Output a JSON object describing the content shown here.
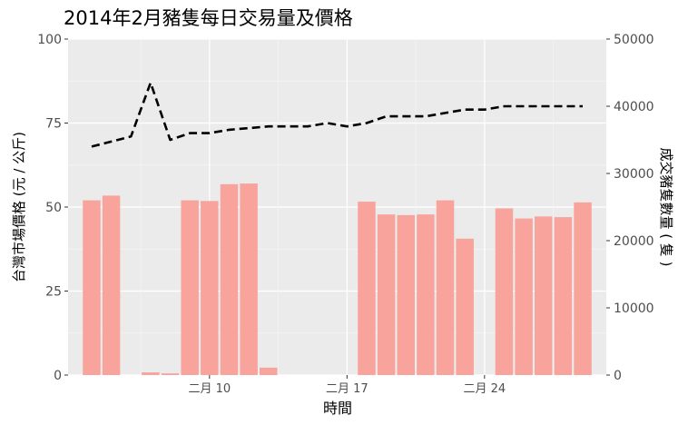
{
  "chart_data": {
    "type": "bar",
    "title": "2014年2月豬隻每日交易量及價格",
    "xlabel": "時間",
    "ylabel": "台灣市場價格 (元 / 公斤)",
    "y2label": "成交豬隻數量 ( 隻 )",
    "x_ticks": [
      {
        "day": 10,
        "label": "二月 10"
      },
      {
        "day": 17,
        "label": "二月 17"
      },
      {
        "day": 24,
        "label": "二月 24"
      }
    ],
    "xlim_days": [
      2.8,
      30.2
    ],
    "ylim": [
      0,
      100
    ],
    "y_ticks": [
      0,
      25,
      50,
      75,
      100
    ],
    "y2lim": [
      0,
      50000
    ],
    "y2_ticks": [
      0,
      10000,
      20000,
      30000,
      40000,
      50000
    ],
    "grid": true,
    "series": [
      {
        "type": "bar",
        "axis": "right",
        "color": "#f8a39c",
        "x_days": [
          4,
          5,
          7,
          8,
          9,
          10,
          11,
          12,
          13,
          14,
          18,
          19,
          20,
          21,
          22,
          23,
          25,
          26,
          27,
          28,
          29
        ],
        "values": [
          26000,
          26700,
          400,
          250,
          26000,
          25900,
          28400,
          28500,
          1100,
          0,
          25800,
          23900,
          23800,
          23900,
          26000,
          20300,
          24800,
          23300,
          23600,
          23500,
          25700
        ]
      },
      {
        "type": "line",
        "axis": "left",
        "color": "#000000",
        "style": "dashed",
        "x_days": [
          4,
          5,
          6,
          7,
          8,
          9,
          10,
          11,
          12,
          13,
          14,
          15,
          16,
          17,
          18,
          19,
          20,
          21,
          22,
          23,
          24,
          25,
          26,
          27,
          28,
          29
        ],
        "values": [
          68,
          69.5,
          71,
          87,
          70,
          72,
          72,
          73,
          73.5,
          74,
          74,
          74,
          75,
          74,
          75,
          77,
          77,
          77,
          78,
          79,
          79,
          80,
          80,
          80,
          80,
          80
        ]
      }
    ]
  }
}
